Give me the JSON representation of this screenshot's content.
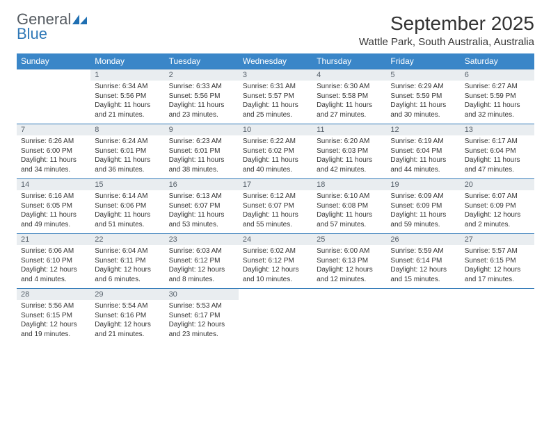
{
  "logo": {
    "word1": "General",
    "word2": "Blue"
  },
  "title": "September 2025",
  "location": "Wattle Park, South Australia, Australia",
  "colors": {
    "header_bg": "#3a86c8",
    "header_text": "#ffffff",
    "daynum_bg": "#e9edf0",
    "daynum_text": "#56606a",
    "rule": "#2f78b7",
    "page_bg": "#ffffff",
    "body_text": "#333333",
    "logo_gray": "#555b61",
    "logo_blue": "#2f78b7"
  },
  "weekdays": [
    "Sunday",
    "Monday",
    "Tuesday",
    "Wednesday",
    "Thursday",
    "Friday",
    "Saturday"
  ],
  "weeks": [
    {
      "nums": [
        "",
        "1",
        "2",
        "3",
        "4",
        "5",
        "6"
      ],
      "cells": [
        null,
        {
          "sunrise": "Sunrise: 6:34 AM",
          "sunset": "Sunset: 5:56 PM",
          "day1": "Daylight: 11 hours",
          "day2": "and 21 minutes."
        },
        {
          "sunrise": "Sunrise: 6:33 AM",
          "sunset": "Sunset: 5:56 PM",
          "day1": "Daylight: 11 hours",
          "day2": "and 23 minutes."
        },
        {
          "sunrise": "Sunrise: 6:31 AM",
          "sunset": "Sunset: 5:57 PM",
          "day1": "Daylight: 11 hours",
          "day2": "and 25 minutes."
        },
        {
          "sunrise": "Sunrise: 6:30 AM",
          "sunset": "Sunset: 5:58 PM",
          "day1": "Daylight: 11 hours",
          "day2": "and 27 minutes."
        },
        {
          "sunrise": "Sunrise: 6:29 AM",
          "sunset": "Sunset: 5:59 PM",
          "day1": "Daylight: 11 hours",
          "day2": "and 30 minutes."
        },
        {
          "sunrise": "Sunrise: 6:27 AM",
          "sunset": "Sunset: 5:59 PM",
          "day1": "Daylight: 11 hours",
          "day2": "and 32 minutes."
        }
      ]
    },
    {
      "nums": [
        "7",
        "8",
        "9",
        "10",
        "11",
        "12",
        "13"
      ],
      "cells": [
        {
          "sunrise": "Sunrise: 6:26 AM",
          "sunset": "Sunset: 6:00 PM",
          "day1": "Daylight: 11 hours",
          "day2": "and 34 minutes."
        },
        {
          "sunrise": "Sunrise: 6:24 AM",
          "sunset": "Sunset: 6:01 PM",
          "day1": "Daylight: 11 hours",
          "day2": "and 36 minutes."
        },
        {
          "sunrise": "Sunrise: 6:23 AM",
          "sunset": "Sunset: 6:01 PM",
          "day1": "Daylight: 11 hours",
          "day2": "and 38 minutes."
        },
        {
          "sunrise": "Sunrise: 6:22 AM",
          "sunset": "Sunset: 6:02 PM",
          "day1": "Daylight: 11 hours",
          "day2": "and 40 minutes."
        },
        {
          "sunrise": "Sunrise: 6:20 AM",
          "sunset": "Sunset: 6:03 PM",
          "day1": "Daylight: 11 hours",
          "day2": "and 42 minutes."
        },
        {
          "sunrise": "Sunrise: 6:19 AM",
          "sunset": "Sunset: 6:04 PM",
          "day1": "Daylight: 11 hours",
          "day2": "and 44 minutes."
        },
        {
          "sunrise": "Sunrise: 6:17 AM",
          "sunset": "Sunset: 6:04 PM",
          "day1": "Daylight: 11 hours",
          "day2": "and 47 minutes."
        }
      ]
    },
    {
      "nums": [
        "14",
        "15",
        "16",
        "17",
        "18",
        "19",
        "20"
      ],
      "cells": [
        {
          "sunrise": "Sunrise: 6:16 AM",
          "sunset": "Sunset: 6:05 PM",
          "day1": "Daylight: 11 hours",
          "day2": "and 49 minutes."
        },
        {
          "sunrise": "Sunrise: 6:14 AM",
          "sunset": "Sunset: 6:06 PM",
          "day1": "Daylight: 11 hours",
          "day2": "and 51 minutes."
        },
        {
          "sunrise": "Sunrise: 6:13 AM",
          "sunset": "Sunset: 6:07 PM",
          "day1": "Daylight: 11 hours",
          "day2": "and 53 minutes."
        },
        {
          "sunrise": "Sunrise: 6:12 AM",
          "sunset": "Sunset: 6:07 PM",
          "day1": "Daylight: 11 hours",
          "day2": "and 55 minutes."
        },
        {
          "sunrise": "Sunrise: 6:10 AM",
          "sunset": "Sunset: 6:08 PM",
          "day1": "Daylight: 11 hours",
          "day2": "and 57 minutes."
        },
        {
          "sunrise": "Sunrise: 6:09 AM",
          "sunset": "Sunset: 6:09 PM",
          "day1": "Daylight: 11 hours",
          "day2": "and 59 minutes."
        },
        {
          "sunrise": "Sunrise: 6:07 AM",
          "sunset": "Sunset: 6:09 PM",
          "day1": "Daylight: 12 hours",
          "day2": "and 2 minutes."
        }
      ]
    },
    {
      "nums": [
        "21",
        "22",
        "23",
        "24",
        "25",
        "26",
        "27"
      ],
      "cells": [
        {
          "sunrise": "Sunrise: 6:06 AM",
          "sunset": "Sunset: 6:10 PM",
          "day1": "Daylight: 12 hours",
          "day2": "and 4 minutes."
        },
        {
          "sunrise": "Sunrise: 6:04 AM",
          "sunset": "Sunset: 6:11 PM",
          "day1": "Daylight: 12 hours",
          "day2": "and 6 minutes."
        },
        {
          "sunrise": "Sunrise: 6:03 AM",
          "sunset": "Sunset: 6:12 PM",
          "day1": "Daylight: 12 hours",
          "day2": "and 8 minutes."
        },
        {
          "sunrise": "Sunrise: 6:02 AM",
          "sunset": "Sunset: 6:12 PM",
          "day1": "Daylight: 12 hours",
          "day2": "and 10 minutes."
        },
        {
          "sunrise": "Sunrise: 6:00 AM",
          "sunset": "Sunset: 6:13 PM",
          "day1": "Daylight: 12 hours",
          "day2": "and 12 minutes."
        },
        {
          "sunrise": "Sunrise: 5:59 AM",
          "sunset": "Sunset: 6:14 PM",
          "day1": "Daylight: 12 hours",
          "day2": "and 15 minutes."
        },
        {
          "sunrise": "Sunrise: 5:57 AM",
          "sunset": "Sunset: 6:15 PM",
          "day1": "Daylight: 12 hours",
          "day2": "and 17 minutes."
        }
      ]
    },
    {
      "nums": [
        "28",
        "29",
        "30",
        "",
        "",
        "",
        ""
      ],
      "cells": [
        {
          "sunrise": "Sunrise: 5:56 AM",
          "sunset": "Sunset: 6:15 PM",
          "day1": "Daylight: 12 hours",
          "day2": "and 19 minutes."
        },
        {
          "sunrise": "Sunrise: 5:54 AM",
          "sunset": "Sunset: 6:16 PM",
          "day1": "Daylight: 12 hours",
          "day2": "and 21 minutes."
        },
        {
          "sunrise": "Sunrise: 5:53 AM",
          "sunset": "Sunset: 6:17 PM",
          "day1": "Daylight: 12 hours",
          "day2": "and 23 minutes."
        },
        null,
        null,
        null,
        null
      ]
    }
  ]
}
